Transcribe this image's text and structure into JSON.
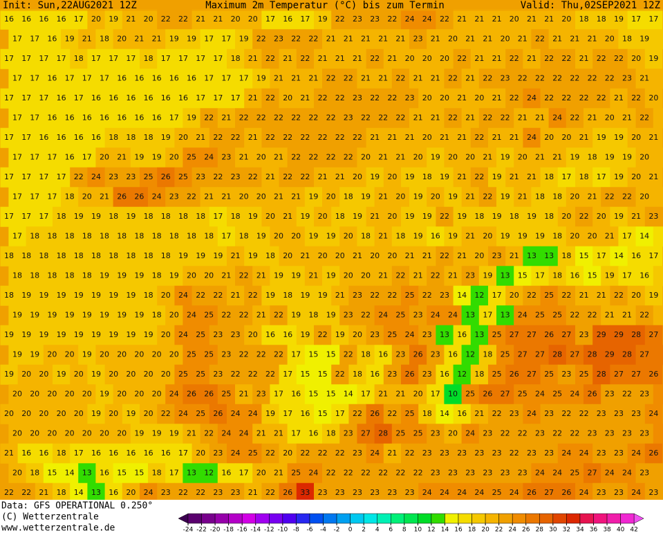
{
  "header": {
    "init": "Init: Sun,22AUG2021 12Z",
    "title": "Maximum 2m Temperatur (°C) bis zum Termin",
    "valid": "Valid: Thu,02SEP2021 12Z"
  },
  "footer": {
    "data": "Data: GFS OPERATIONAL 0.250°",
    "copyright": "(C) Wetterzentrale",
    "url": "www.wetterzentrale.de"
  },
  "colorbar": {
    "levels": [
      -24,
      -22,
      -20,
      -18,
      -16,
      -14,
      -12,
      -10,
      -8,
      -6,
      -4,
      -2,
      0,
      2,
      4,
      6,
      8,
      10,
      12,
      14,
      16,
      18,
      20,
      22,
      24,
      26,
      28,
      30,
      32,
      34,
      36,
      38,
      40,
      42
    ],
    "colors": [
      "#3c0050",
      "#5a006e",
      "#78008c",
      "#9600aa",
      "#b400c8",
      "#d200e6",
      "#a000f0",
      "#7800f0",
      "#5000f0",
      "#2828f0",
      "#0050f0",
      "#0078f0",
      "#00a0f0",
      "#00c8f0",
      "#00e6e6",
      "#00f0b4",
      "#00f078",
      "#00e650",
      "#00dc28",
      "#32dc00",
      "#f0f000",
      "#f5dc00",
      "#f5c800",
      "#f5b400",
      "#f0a000",
      "#f08c00",
      "#eb7800",
      "#e66400",
      "#e14600",
      "#dc2800",
      "#e61450",
      "#f0147d",
      "#f01eaa",
      "#f028d2",
      "#f050f0"
    ]
  },
  "grid": [
    [
      16,
      16,
      16,
      16,
      17,
      20,
      19,
      21,
      20,
      22,
      22,
      21,
      21,
      20,
      20,
      17,
      16,
      17,
      19,
      22,
      23,
      23,
      22,
      24,
      24,
      22,
      21,
      21,
      21,
      20,
      21,
      21,
      20,
      18,
      18,
      19,
      17,
      17
    ],
    [
      17,
      17,
      16,
      19,
      21,
      18,
      20,
      21,
      21,
      19,
      19,
      17,
      17,
      19,
      22,
      23,
      22,
      22,
      21,
      21,
      21,
      21,
      21,
      23,
      21,
      20,
      21,
      21,
      20,
      21,
      22,
      21,
      21,
      21,
      20,
      18,
      19,
      19
    ],
    [
      17,
      17,
      17,
      17,
      18,
      17,
      17,
      17,
      18,
      17,
      17,
      17,
      17,
      18,
      21,
      22,
      21,
      22,
      21,
      21,
      21,
      22,
      21,
      20,
      20,
      20,
      22,
      21,
      21,
      22,
      21,
      22,
      22,
      21,
      22,
      22,
      20,
      19
    ],
    [
      17,
      17,
      16,
      17,
      17,
      17,
      16,
      16,
      16,
      16,
      16,
      17,
      17,
      17,
      19,
      21,
      21,
      21,
      22,
      22,
      21,
      21,
      22,
      21,
      21,
      22,
      21,
      22,
      23,
      22,
      22,
      22,
      22,
      22,
      22,
      23,
      21,
      20
    ],
    [
      17,
      17,
      17,
      16,
      17,
      16,
      16,
      16,
      16,
      16,
      16,
      17,
      17,
      17,
      21,
      22,
      20,
      21,
      22,
      22,
      23,
      22,
      22,
      23,
      20,
      20,
      21,
      20,
      21,
      22,
      24,
      22,
      22,
      22,
      22,
      21,
      22,
      20
    ],
    [
      17,
      17,
      16,
      16,
      16,
      16,
      16,
      16,
      16,
      17,
      19,
      22,
      21,
      22,
      22,
      22,
      22,
      22,
      22,
      23,
      22,
      22,
      22,
      21,
      21,
      22,
      21,
      22,
      22,
      21,
      21,
      24,
      22,
      21,
      20,
      21,
      22,
      20
    ],
    [
      17,
      17,
      16,
      16,
      16,
      16,
      18,
      18,
      18,
      19,
      20,
      21,
      22,
      22,
      21,
      22,
      22,
      22,
      22,
      22,
      22,
      21,
      21,
      21,
      20,
      21,
      21,
      22,
      21,
      21,
      24,
      20,
      20,
      21,
      19,
      19,
      20,
      21
    ],
    [
      17,
      17,
      17,
      16,
      17,
      20,
      21,
      19,
      19,
      20,
      25,
      24,
      23,
      21,
      20,
      21,
      22,
      22,
      22,
      22,
      20,
      21,
      21,
      20,
      19,
      20,
      20,
      21,
      19,
      20,
      21,
      21,
      19,
      18,
      19,
      19,
      20,
      20
    ],
    [
      17,
      17,
      17,
      17,
      22,
      24,
      23,
      23,
      25,
      26,
      25,
      23,
      22,
      23,
      22,
      21,
      22,
      22,
      21,
      21,
      20,
      19,
      20,
      19,
      18,
      19,
      21,
      22,
      19,
      21,
      21,
      18,
      17,
      18,
      17,
      19,
      20,
      21
    ],
    [
      17,
      17,
      17,
      18,
      20,
      21,
      26,
      26,
      24,
      23,
      22,
      21,
      21,
      20,
      20,
      21,
      21,
      19,
      20,
      18,
      19,
      21,
      20,
      19,
      20,
      19,
      21,
      22,
      19,
      21,
      18,
      18,
      20,
      21,
      22,
      22,
      20,
      21
    ],
    [
      17,
      17,
      17,
      18,
      19,
      19,
      18,
      19,
      18,
      18,
      18,
      18,
      17,
      18,
      19,
      20,
      21,
      19,
      20,
      18,
      19,
      21,
      20,
      19,
      19,
      22,
      19,
      18,
      19,
      18,
      19,
      18,
      20,
      22,
      20,
      19,
      21,
      23
    ],
    [
      17,
      18,
      18,
      18,
      18,
      18,
      18,
      18,
      18,
      18,
      18,
      18,
      17,
      18,
      19,
      20,
      20,
      19,
      19,
      20,
      18,
      21,
      18,
      19,
      16,
      19,
      21,
      20,
      19,
      19,
      19,
      18,
      20,
      20,
      21,
      17,
      14,
      16
    ],
    [
      18,
      18,
      18,
      18,
      18,
      18,
      18,
      18,
      18,
      18,
      19,
      19,
      19,
      21,
      19,
      18,
      20,
      21,
      20,
      20,
      21,
      20,
      20,
      21,
      21,
      22,
      21,
      20,
      23,
      21,
      13,
      13,
      18,
      15,
      17,
      14,
      16,
      17
    ],
    [
      18,
      18,
      18,
      18,
      18,
      19,
      19,
      19,
      18,
      19,
      20,
      20,
      21,
      22,
      21,
      19,
      19,
      21,
      19,
      20,
      20,
      21,
      22,
      21,
      22,
      21,
      23,
      19,
      13,
      15,
      17,
      18,
      16,
      15,
      19,
      17,
      16,
      18
    ],
    [
      18,
      19,
      19,
      19,
      19,
      19,
      19,
      19,
      18,
      20,
      24,
      22,
      22,
      21,
      22,
      19,
      18,
      19,
      19,
      21,
      23,
      22,
      22,
      25,
      22,
      23,
      14,
      12,
      17,
      20,
      22,
      25,
      22,
      21,
      21,
      22,
      20,
      19
    ],
    [
      19,
      19,
      19,
      19,
      19,
      19,
      19,
      19,
      18,
      20,
      24,
      25,
      22,
      22,
      21,
      22,
      19,
      18,
      19,
      23,
      22,
      24,
      25,
      23,
      24,
      24,
      13,
      17,
      13,
      24,
      25,
      25,
      22,
      22,
      21,
      21,
      22,
      21
    ],
    [
      19,
      19,
      19,
      19,
      19,
      19,
      19,
      19,
      19,
      20,
      24,
      25,
      23,
      23,
      20,
      16,
      16,
      19,
      22,
      19,
      20,
      23,
      25,
      24,
      23,
      13,
      16,
      13,
      25,
      27,
      27,
      26,
      27,
      23,
      29,
      29,
      28,
      27
    ],
    [
      19,
      19,
      20,
      20,
      19,
      20,
      20,
      20,
      20,
      20,
      25,
      25,
      23,
      22,
      22,
      22,
      17,
      15,
      15,
      22,
      18,
      16,
      23,
      26,
      23,
      16,
      12,
      18,
      25,
      27,
      27,
      28,
      27,
      28,
      29,
      28,
      27,
      26
    ],
    [
      19,
      20,
      20,
      19,
      20,
      19,
      20,
      20,
      20,
      20,
      25,
      25,
      23,
      22,
      22,
      22,
      17,
      15,
      15,
      22,
      18,
      16,
      23,
      26,
      23,
      16,
      12,
      18,
      25,
      26,
      27,
      25,
      23,
      25,
      28,
      27,
      27,
      26
    ],
    [
      20,
      20,
      20,
      20,
      20,
      19,
      20,
      20,
      20,
      24,
      26,
      26,
      25,
      21,
      23,
      17,
      16,
      15,
      15,
      14,
      17,
      21,
      21,
      20,
      17,
      10,
      25,
      26,
      27,
      25,
      24,
      25,
      24,
      26,
      23,
      22,
      23,
      24
    ],
    [
      20,
      20,
      20,
      20,
      20,
      19,
      20,
      19,
      20,
      22,
      24,
      25,
      26,
      24,
      24,
      19,
      17,
      16,
      15,
      17,
      22,
      26,
      22,
      25,
      18,
      14,
      16,
      21,
      22,
      23,
      24,
      23,
      22,
      22,
      23,
      23,
      23,
      24
    ],
    [
      20,
      20,
      20,
      20,
      20,
      20,
      20,
      19,
      19,
      19,
      21,
      22,
      24,
      24,
      21,
      21,
      17,
      16,
      18,
      23,
      27,
      28,
      25,
      25,
      23,
      20,
      24,
      23,
      22,
      22,
      23,
      22,
      22,
      23,
      23,
      23,
      23,
      24
    ],
    [
      21,
      16,
      16,
      18,
      17,
      16,
      16,
      16,
      16,
      16,
      17,
      20,
      23,
      24,
      25,
      22,
      20,
      22,
      22,
      22,
      23,
      24,
      21,
      22,
      23,
      23,
      23,
      23,
      23,
      22,
      23,
      23,
      24,
      24,
      23,
      23,
      24,
      26
    ],
    [
      20,
      18,
      15,
      14,
      13,
      16,
      15,
      15,
      18,
      17,
      13,
      12,
      16,
      17,
      20,
      21,
      25,
      24,
      22,
      22,
      22,
      22,
      22,
      22,
      23,
      23,
      23,
      23,
      23,
      23,
      24,
      24,
      25,
      27,
      24,
      24,
      23,
      23
    ],
    [
      22,
      22,
      21,
      18,
      14,
      13,
      16,
      20,
      24,
      23,
      22,
      22,
      23,
      23,
      21,
      22,
      26,
      33,
      23,
      23,
      23,
      23,
      23,
      23,
      24,
      24,
      24,
      24,
      25,
      24,
      26,
      27,
      26,
      24,
      23,
      23,
      24,
      23
    ]
  ]
}
